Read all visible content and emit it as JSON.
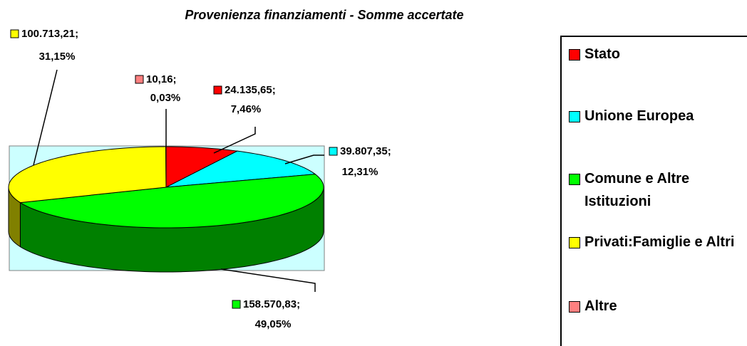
{
  "chart_data": {
    "type": "pie3d",
    "title": "Provenienza finanziamenti - Somme accertate",
    "categories": [
      "Stato",
      "Unione Europea",
      "Comune e Altre Istituzioni",
      "Privati:Famiglie e Altri",
      "Altre"
    ],
    "values": [
      24135.65,
      39807.35,
      158570.83,
      100713.21,
      10.16
    ],
    "value_labels": [
      "24.135,65;",
      "39.807,35;",
      "158.570,83;",
      "100.713,21;",
      "10,16;"
    ],
    "percents": [
      7.46,
      12.31,
      49.05,
      31.15,
      0.03
    ],
    "percent_labels": [
      "7,46%",
      "12,31%",
      "49,05%",
      "31,15%",
      "0,03%"
    ],
    "colors": [
      "#ff0000",
      "#00ffff",
      "#00ff00",
      "#ffff00",
      "#ff8080"
    ],
    "legend": "right"
  }
}
